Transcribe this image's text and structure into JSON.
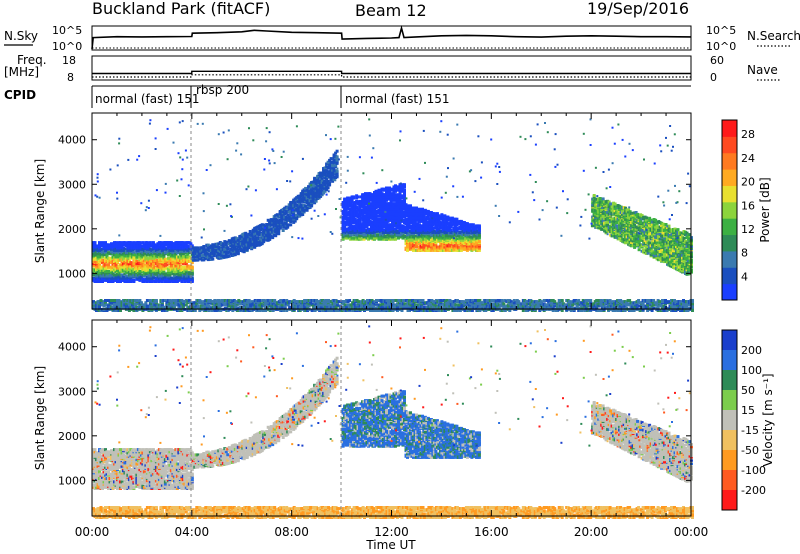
{
  "header": {
    "title": "Buckland Park (fitACF)",
    "beam": "Beam 12",
    "date": "19/Sep/2016"
  },
  "strips": {
    "nsky": {
      "label": "N.Sky",
      "left_ticks": [
        "10^5",
        "10^0"
      ],
      "right_ticks": [
        "10^5",
        "10^0"
      ],
      "right_label": "N.Search",
      "trace": [
        [
          0.0,
          0.0
        ],
        [
          0.05,
          0.52
        ],
        [
          1,
          0.56
        ],
        [
          2,
          0.55
        ],
        [
          3,
          0.56
        ],
        [
          4.0,
          0.57
        ],
        [
          4.02,
          0.72
        ],
        [
          5,
          0.74
        ],
        [
          6,
          0.78
        ],
        [
          6.5,
          0.85
        ],
        [
          7,
          0.82
        ],
        [
          8,
          0.76
        ],
        [
          9,
          0.74
        ],
        [
          10.0,
          0.72
        ],
        [
          10.02,
          0.45
        ],
        [
          11,
          0.48
        ],
        [
          12,
          0.5
        ],
        [
          12.3,
          0.52
        ],
        [
          12.4,
          0.95
        ],
        [
          12.5,
          0.52
        ],
        [
          13,
          0.55
        ],
        [
          14,
          0.6
        ],
        [
          15,
          0.62
        ],
        [
          16,
          0.6
        ],
        [
          17,
          0.56
        ],
        [
          18,
          0.54
        ],
        [
          19,
          0.58
        ],
        [
          20,
          0.6
        ],
        [
          21,
          0.58
        ],
        [
          22,
          0.56
        ],
        [
          23,
          0.56
        ],
        [
          24,
          0.55
        ]
      ]
    },
    "freq": {
      "label_line1": "Freq.",
      "label_line2": "[MHz]",
      "left_ticks": [
        "18",
        "8"
      ],
      "right_ticks": [
        "60",
        "0"
      ],
      "right_label": "Nave",
      "segments": [
        {
          "start": 0,
          "end": 4,
          "value": 10.5
        },
        {
          "start": 4,
          "end": 10,
          "value": 11.5
        },
        {
          "start": 10,
          "end": 24,
          "value": 10.5
        }
      ],
      "range": [
        8,
        18
      ]
    },
    "cpid": {
      "label": "CPID",
      "modes": [
        {
          "start": 0,
          "end": 4,
          "text": "normal (fast) 151"
        },
        {
          "start": 4,
          "end": 10,
          "text": "rbsp 200"
        },
        {
          "start": 10,
          "end": 24,
          "text": "normal (fast) 151"
        }
      ]
    }
  },
  "chart_data": [
    {
      "type": "heatmap",
      "ylabel": "Slant Range [km]",
      "xlim": [
        0,
        24
      ],
      "ylim": [
        200,
        4600
      ],
      "yticks": [
        1000,
        2000,
        3000,
        4000
      ],
      "quantity": "Power",
      "colorbar": {
        "label": "Power [dB]",
        "ticks": [
          "4",
          "8",
          "12",
          "16",
          "20",
          "24",
          "28"
        ],
        "colors": [
          "#1a3fff",
          "#1a4fbf",
          "#3a7ab0",
          "#2e8b57",
          "#3cb043",
          "#8cd43c",
          "#e8e030",
          "#ffaa22",
          "#ff7a20",
          "#ff4a20",
          "#ff1a1a"
        ]
      },
      "echo_regions": [
        {
          "name": "morning-band",
          "t0": 0.0,
          "t1": 4.0,
          "r0": 800,
          "r1": 1800,
          "core": 1250,
          "peak": 28
        },
        {
          "name": "rising-arc",
          "t0": 4.0,
          "t1": 9.8,
          "r0": 1400,
          "r1": 3500,
          "peak": 6
        },
        {
          "name": "noon-patch",
          "t0": 10.0,
          "t1": 15.5,
          "r0": 1500,
          "r1": 3200,
          "core": 1650,
          "peak": 24
        },
        {
          "name": "evening-arc",
          "t0": 20.0,
          "t1": 24.0,
          "r0": 1200,
          "r1": 2800,
          "peak": 20
        },
        {
          "name": "near-range-band",
          "t0": 0.0,
          "t1": 24.0,
          "r0": 200,
          "r1": 450,
          "peak": 10
        }
      ]
    },
    {
      "type": "heatmap",
      "ylabel": "Slant Range [km]",
      "xlabel": "Time UT",
      "xlim": [
        0,
        24
      ],
      "ylim": [
        200,
        4600
      ],
      "xticks": [
        "00:00",
        "04:00",
        "08:00",
        "12:00",
        "16:00",
        "20:00",
        "00:00"
      ],
      "yticks": [
        1000,
        2000,
        3000,
        4000
      ],
      "quantity": "Velocity",
      "colorbar": {
        "label": "Velocity [m s⁻¹]",
        "ticks": [
          "200",
          "100",
          "50",
          "15",
          "-15",
          "-50",
          "-100",
          "-200"
        ],
        "colors": [
          "#1a3fcc",
          "#2a6fe0",
          "#2e8b57",
          "#7ccd4c",
          "#c0c0b8",
          "#f0c060",
          "#ff9a20",
          "#ff5a20",
          "#ff1a1a"
        ]
      },
      "echo_regions": [
        {
          "name": "morning-band",
          "t0": 0.0,
          "t1": 4.0,
          "r0": 800,
          "r1": 1800,
          "typical": 0
        },
        {
          "name": "rising-arc",
          "t0": 4.0,
          "t1": 9.8,
          "r0": 1400,
          "r1": 3500,
          "typical": 0
        },
        {
          "name": "noon-patch",
          "t0": 10.0,
          "t1": 15.5,
          "r0": 1500,
          "r1": 3200,
          "typical": 120
        },
        {
          "name": "evening-arc",
          "t0": 20.0,
          "t1": 24.0,
          "r0": 1200,
          "r1": 2800,
          "typical": 0
        },
        {
          "name": "near-range-band",
          "t0": 0.0,
          "t1": 24.0,
          "r0": 200,
          "r1": 450,
          "typical": -40
        }
      ]
    }
  ]
}
